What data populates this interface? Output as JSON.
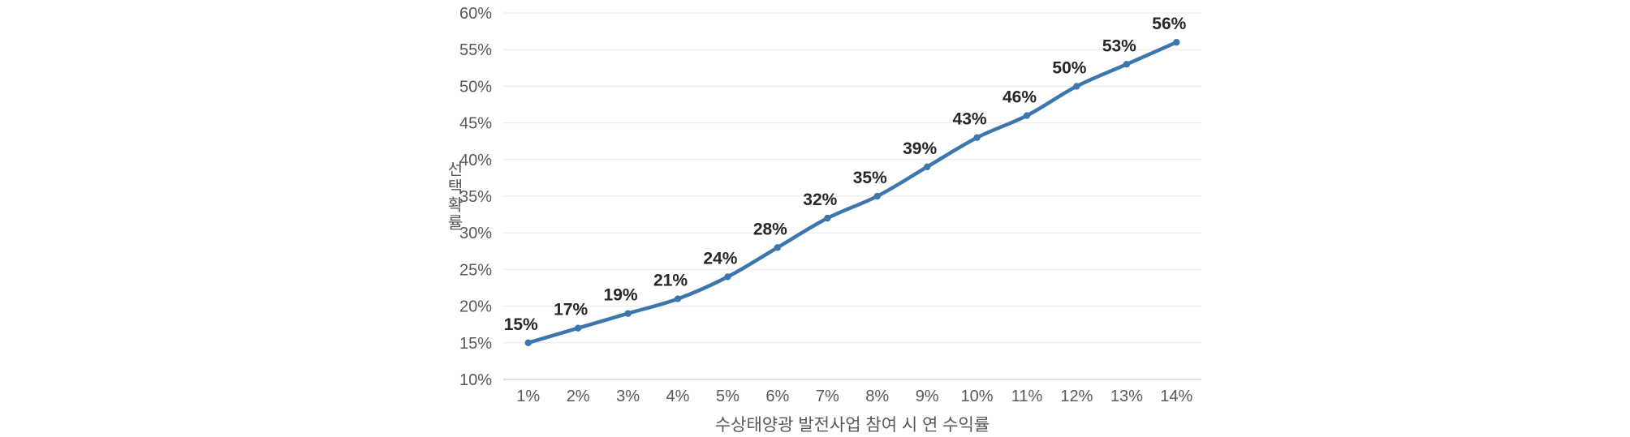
{
  "chart_data": {
    "type": "line",
    "categories": [
      "1%",
      "2%",
      "3%",
      "4%",
      "5%",
      "6%",
      "7%",
      "8%",
      "9%",
      "10%",
      "11%",
      "12%",
      "13%",
      "14%"
    ],
    "values": [
      15,
      17,
      19,
      21,
      24,
      28,
      32,
      35,
      39,
      43,
      46,
      50,
      53,
      56
    ],
    "data_labels": [
      "15%",
      "17%",
      "19%",
      "21%",
      "24%",
      "28%",
      "32%",
      "35%",
      "39%",
      "43%",
      "46%",
      "50%",
      "53%",
      "56%"
    ],
    "title": "",
    "xlabel": "수상태양광 발전사업 참여 시 연 수익률",
    "ylabel": "선택확률",
    "ylim": [
      10,
      60
    ],
    "y_tick_step": 5,
    "y_tick_labels": [
      "10%",
      "15%",
      "20%",
      "25%",
      "30%",
      "35%",
      "40%",
      "45%",
      "50%",
      "55%",
      "60%"
    ],
    "grid": "horizontal",
    "legend": "none",
    "colors": {
      "line": "#3d76ad",
      "marker": "#3d76ad",
      "data_label": "#262626",
      "tick_label": "#595959",
      "axis_title": "#595959",
      "gridline": "#e8e8e8",
      "axis_line": "#d6d6d6",
      "background": "#ffffff"
    }
  }
}
